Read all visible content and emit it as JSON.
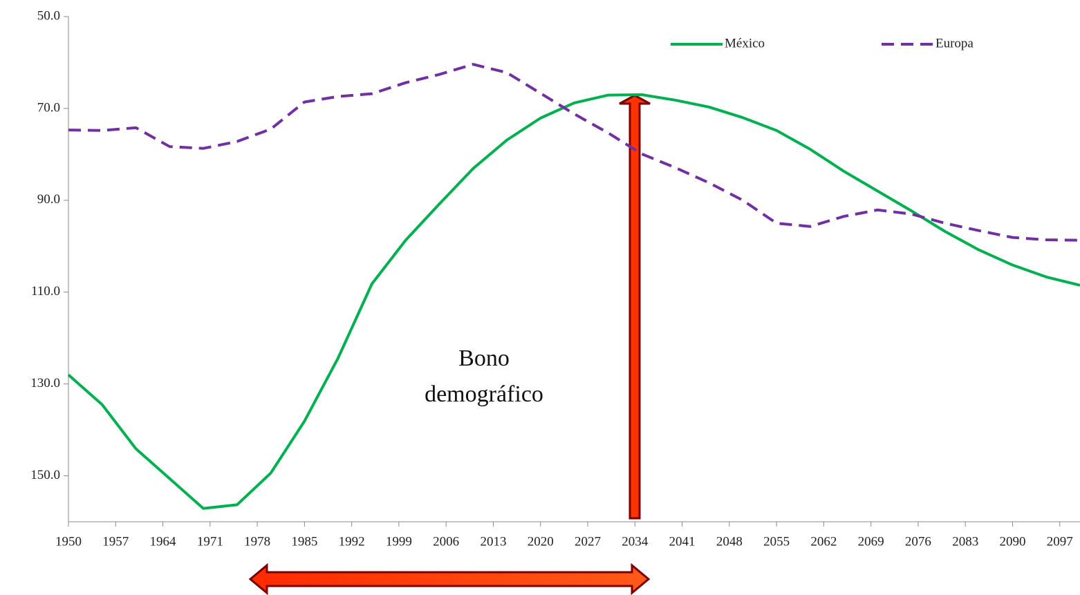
{
  "chart_data": {
    "type": "line",
    "x": [
      1950,
      1955,
      1960,
      1965,
      1970,
      1975,
      1980,
      1985,
      1990,
      1995,
      2000,
      2005,
      2010,
      2015,
      2020,
      2025,
      2030,
      2035,
      2040,
      2045,
      2050,
      2055,
      2060,
      2065,
      2070,
      2075,
      2080,
      2085,
      2090,
      2095,
      2100
    ],
    "series": [
      {
        "name": "México",
        "color": "#00b050",
        "dash": "solid",
        "values": [
          128.0,
          134.5,
          144.1,
          150.6,
          157.1,
          156.3,
          149.4,
          138.1,
          124.3,
          108.2,
          98.7,
          90.8,
          83.1,
          76.9,
          72.1,
          68.8,
          67.1,
          67.0,
          68.2,
          69.7,
          72.0,
          74.8,
          78.9,
          83.7,
          88.0,
          92.3,
          96.8,
          100.8,
          104.1,
          106.7,
          108.5
        ]
      },
      {
        "name": "Europa",
        "color": "#7030a0",
        "dash": "dashed",
        "values": [
          74.7,
          74.8,
          74.2,
          78.3,
          78.7,
          77.2,
          74.5,
          68.6,
          67.4,
          66.8,
          64.4,
          62.6,
          60.4,
          62.2,
          66.7,
          71.2,
          75.3,
          79.9,
          82.9,
          86.2,
          90.0,
          95.0,
          95.7,
          93.5,
          92.1,
          93.0,
          95.0,
          96.6,
          98.1,
          98.6,
          98.7
        ]
      }
    ],
    "xlim": [
      1950,
      2100
    ],
    "xticks": [
      1950,
      1957,
      1964,
      1971,
      1978,
      1985,
      1992,
      1999,
      2006,
      2013,
      2020,
      2027,
      2034,
      2041,
      2048,
      2055,
      2062,
      2069,
      2076,
      2083,
      2090,
      2097
    ],
    "ylim": [
      50,
      160
    ],
    "y_inverted": true,
    "yticks": [
      {
        "value": 50,
        "label": "50.0"
      },
      {
        "value": 70,
        "label": "70.0"
      },
      {
        "value": 90,
        "label": "90.0"
      },
      {
        "value": 110,
        "label": "110.0"
      },
      {
        "value": 130,
        "label": "130.0"
      },
      {
        "value": 150,
        "label": "150.0"
      }
    ],
    "grid": false,
    "legend": "top-right",
    "annotations": [
      "Bono",
      "demográfico"
    ]
  }
}
